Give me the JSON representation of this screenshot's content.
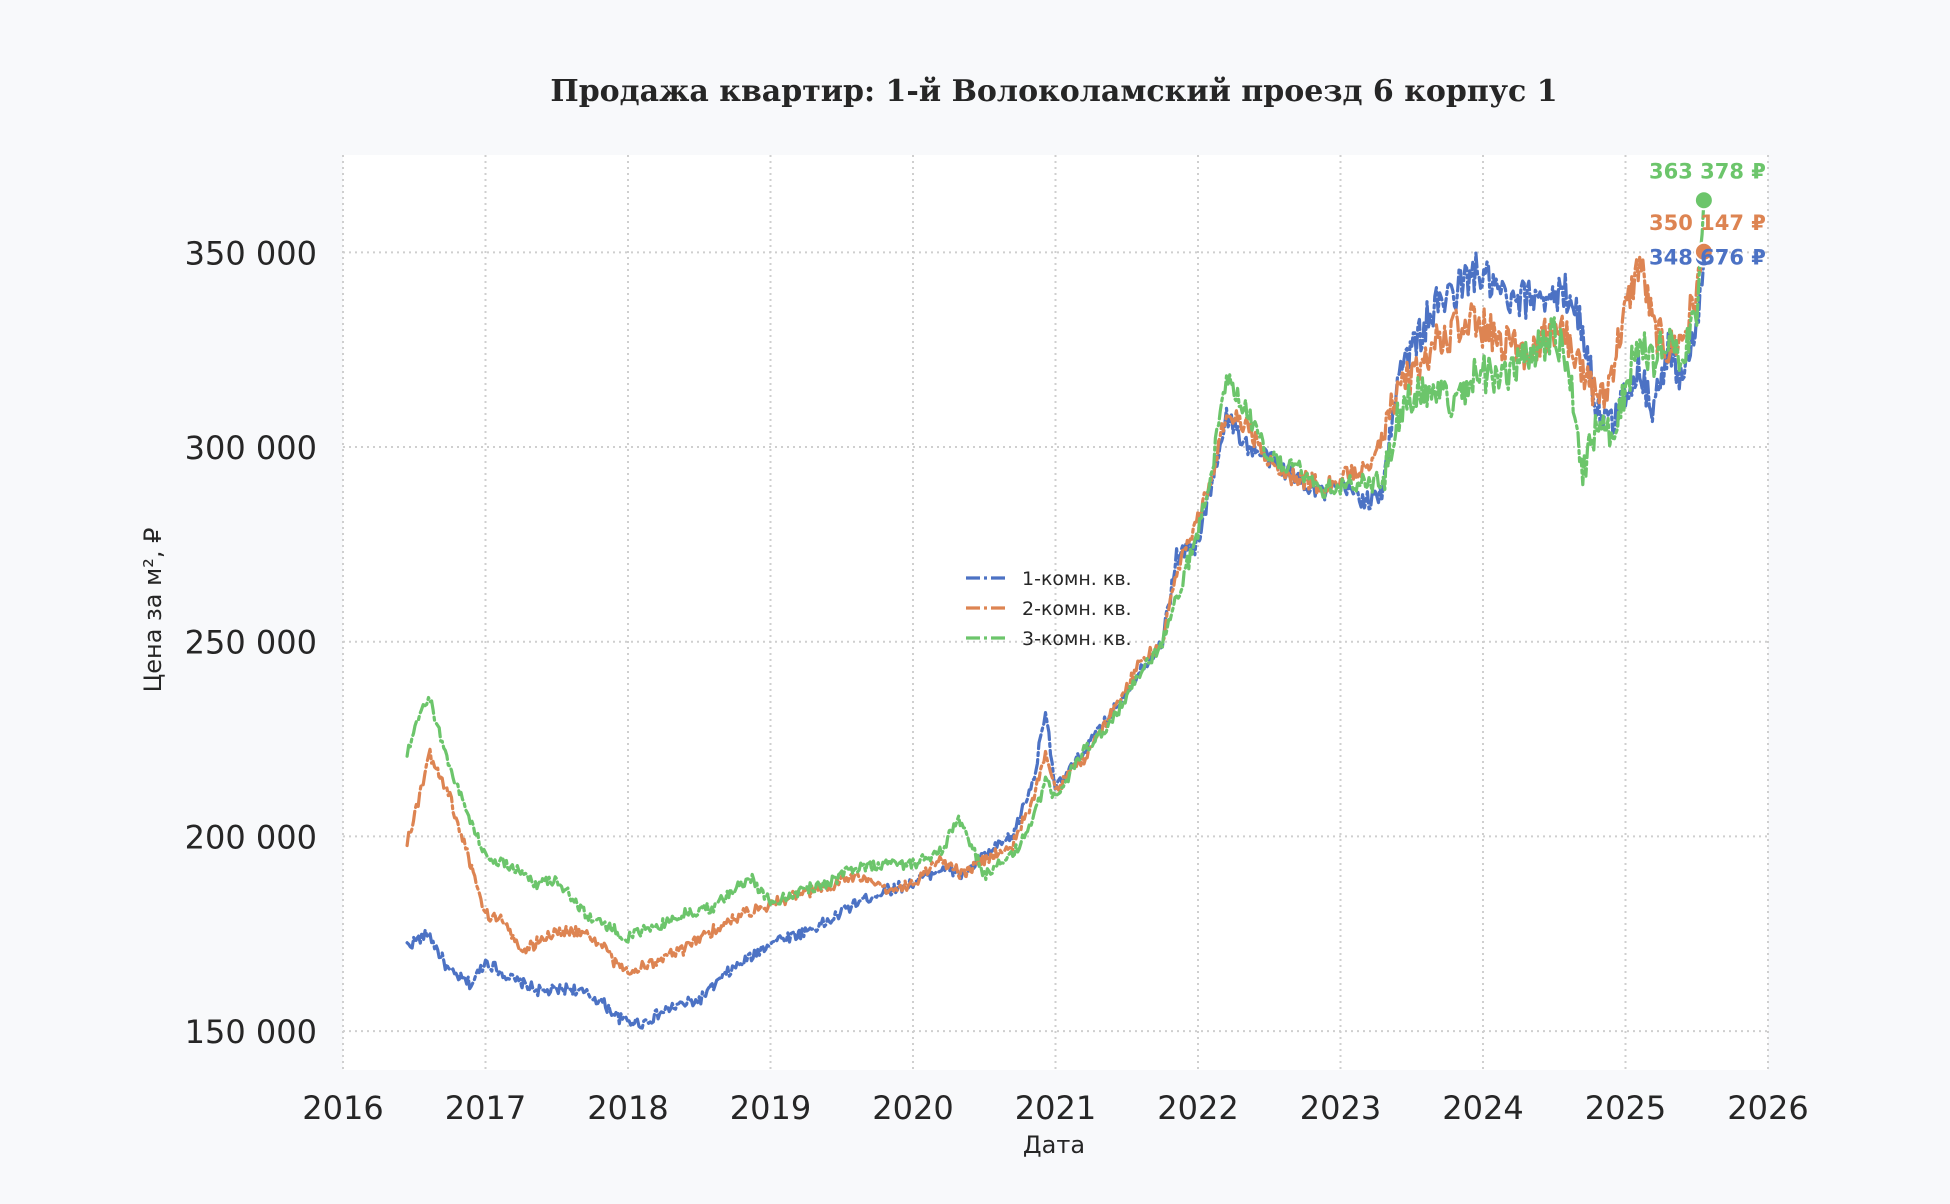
{
  "chart_data": {
    "type": "line",
    "title": "Продажа квартир: 1-й Волоколамский проезд 6 корпус 1",
    "xlabel": "Дата",
    "ylabel": "Цена за м², ₽",
    "xlim": [
      2016.0,
      2026.0
    ],
    "ylim": [
      140000,
      375000
    ],
    "x_ticks": [
      2016,
      2017,
      2018,
      2019,
      2020,
      2021,
      2022,
      2023,
      2024,
      2025,
      2026
    ],
    "x_tick_labels": [
      "2016",
      "2017",
      "2018",
      "2019",
      "2020",
      "2021",
      "2022",
      "2023",
      "2024",
      "2025",
      "2026"
    ],
    "y_ticks": [
      150000,
      200000,
      250000,
      300000,
      350000
    ],
    "y_tick_labels": [
      "150 000",
      "200 000",
      "250 000",
      "300 000",
      "350 000"
    ],
    "grid": true,
    "legend_position": "center",
    "series": [
      {
        "name": "1-комн. кв.",
        "color": "#4c72c4",
        "dash": "14 4 3 4",
        "x": [
          2016.45,
          2016.6,
          2016.75,
          2016.9,
          2017.0,
          2017.2,
          2017.4,
          2017.6,
          2017.8,
          2017.95,
          2018.1,
          2018.3,
          2018.5,
          2018.7,
          2018.9,
          2019.0,
          2019.2,
          2019.4,
          2019.6,
          2019.8,
          2020.0,
          2020.2,
          2020.35,
          2020.5,
          2020.7,
          2020.85,
          2020.93,
          2021.0,
          2021.2,
          2021.4,
          2021.6,
          2021.75,
          2021.85,
          2022.0,
          2022.1,
          2022.2,
          2022.35,
          2022.5,
          2022.7,
          2022.9,
          2023.0,
          2023.1,
          2023.2,
          2023.3,
          2023.4,
          2023.5,
          2023.65,
          2023.8,
          2023.95,
          2024.05,
          2024.2,
          2024.4,
          2024.5,
          2024.6,
          2024.7,
          2024.8,
          2024.9,
          2025.0,
          2025.1,
          2025.2,
          2025.3,
          2025.4,
          2025.5,
          2025.55
        ],
        "values": [
          172000,
          175000,
          165000,
          162000,
          168000,
          163000,
          160000,
          161000,
          158000,
          153000,
          152000,
          156000,
          158000,
          165000,
          170000,
          173000,
          175000,
          178000,
          183000,
          186000,
          188000,
          192000,
          190000,
          195000,
          200000,
          215000,
          233000,
          212000,
          222000,
          232000,
          243000,
          250000,
          272000,
          275000,
          292000,
          308000,
          300000,
          297000,
          292000,
          288000,
          290000,
          288000,
          286000,
          288000,
          320000,
          325000,
          335000,
          340000,
          345000,
          342000,
          336000,
          340000,
          338000,
          340000,
          330000,
          310000,
          305000,
          315000,
          320000,
          310000,
          325000,
          318000,
          330000,
          348676
        ]
      },
      {
        "name": "2-комн. кв.",
        "color": "#dd8452",
        "dash": "14 4 3 4",
        "x": [
          2016.45,
          2016.55,
          2016.6,
          2016.75,
          2016.85,
          2017.0,
          2017.15,
          2017.25,
          2017.45,
          2017.6,
          2017.8,
          2017.9,
          2018.0,
          2018.2,
          2018.4,
          2018.6,
          2018.8,
          2018.95,
          2019.2,
          2019.4,
          2019.6,
          2019.8,
          2020.0,
          2020.2,
          2020.35,
          2020.5,
          2020.7,
          2020.85,
          2020.93,
          2021.0,
          2021.2,
          2021.4,
          2021.6,
          2021.75,
          2021.85,
          2022.0,
          2022.1,
          2022.2,
          2022.35,
          2022.5,
          2022.7,
          2022.9,
          2023.0,
          2023.1,
          2023.2,
          2023.3,
          2023.4,
          2023.5,
          2023.65,
          2023.8,
          2023.95,
          2024.1,
          2024.3,
          2024.5,
          2024.6,
          2024.7,
          2024.85,
          2025.0,
          2025.1,
          2025.2,
          2025.3,
          2025.4,
          2025.5,
          2025.55
        ],
        "values": [
          199000,
          212000,
          222000,
          210000,
          198000,
          180000,
          178000,
          170000,
          175000,
          176000,
          173000,
          168000,
          165000,
          168000,
          171000,
          176000,
          180000,
          182000,
          185000,
          187000,
          190000,
          186000,
          188000,
          194000,
          190000,
          194000,
          198000,
          210000,
          222000,
          212000,
          220000,
          232000,
          245000,
          250000,
          268000,
          282000,
          292000,
          310000,
          305000,
          296000,
          292000,
          290000,
          292000,
          293000,
          296000,
          302000,
          315000,
          318000,
          326000,
          330000,
          332000,
          328000,
          325000,
          330000,
          328000,
          318000,
          312000,
          335000,
          348000,
          330000,
          325000,
          328000,
          340000,
          350147
        ]
      },
      {
        "name": "3-комн. кв.",
        "color": "#6cc56b",
        "dash": "14 4 3 4",
        "x": [
          2016.45,
          2016.55,
          2016.6,
          2016.75,
          2016.85,
          2017.0,
          2017.2,
          2017.35,
          2017.5,
          2017.7,
          2017.85,
          2018.0,
          2018.2,
          2018.4,
          2018.6,
          2018.75,
          2018.85,
          2019.0,
          2019.2,
          2019.4,
          2019.6,
          2019.8,
          2020.0,
          2020.2,
          2020.32,
          2020.5,
          2020.7,
          2020.85,
          2020.93,
          2021.0,
          2021.2,
          2021.4,
          2021.6,
          2021.75,
          2021.85,
          2022.0,
          2022.1,
          2022.2,
          2022.3,
          2022.5,
          2022.7,
          2022.9,
          2023.0,
          2023.1,
          2023.2,
          2023.3,
          2023.4,
          2023.5,
          2023.65,
          2023.8,
          2023.95,
          2024.1,
          2024.3,
          2024.5,
          2024.6,
          2024.7,
          2024.8,
          2024.9,
          2025.0,
          2025.1,
          2025.2,
          2025.3,
          2025.4,
          2025.5,
          2025.55
        ],
        "values": [
          221000,
          232000,
          236000,
          218000,
          208000,
          195000,
          192000,
          188000,
          189000,
          180000,
          177000,
          174000,
          177000,
          180000,
          182000,
          186000,
          190000,
          183000,
          186000,
          188000,
          192000,
          193000,
          193000,
          196000,
          205000,
          190000,
          195000,
          205000,
          214000,
          210000,
          222000,
          230000,
          242000,
          250000,
          262000,
          278000,
          295000,
          318000,
          312000,
          297000,
          295000,
          289000,
          290000,
          291000,
          290000,
          292000,
          308000,
          312000,
          315000,
          310000,
          320000,
          318000,
          322000,
          330000,
          320000,
          295000,
          305000,
          302000,
          315000,
          328000,
          322000,
          330000,
          322000,
          335000,
          363378
        ]
      }
    ],
    "last_value_labels": [
      "348 676 ₽",
      "350 147 ₽",
      "363 378 ₽"
    ]
  }
}
